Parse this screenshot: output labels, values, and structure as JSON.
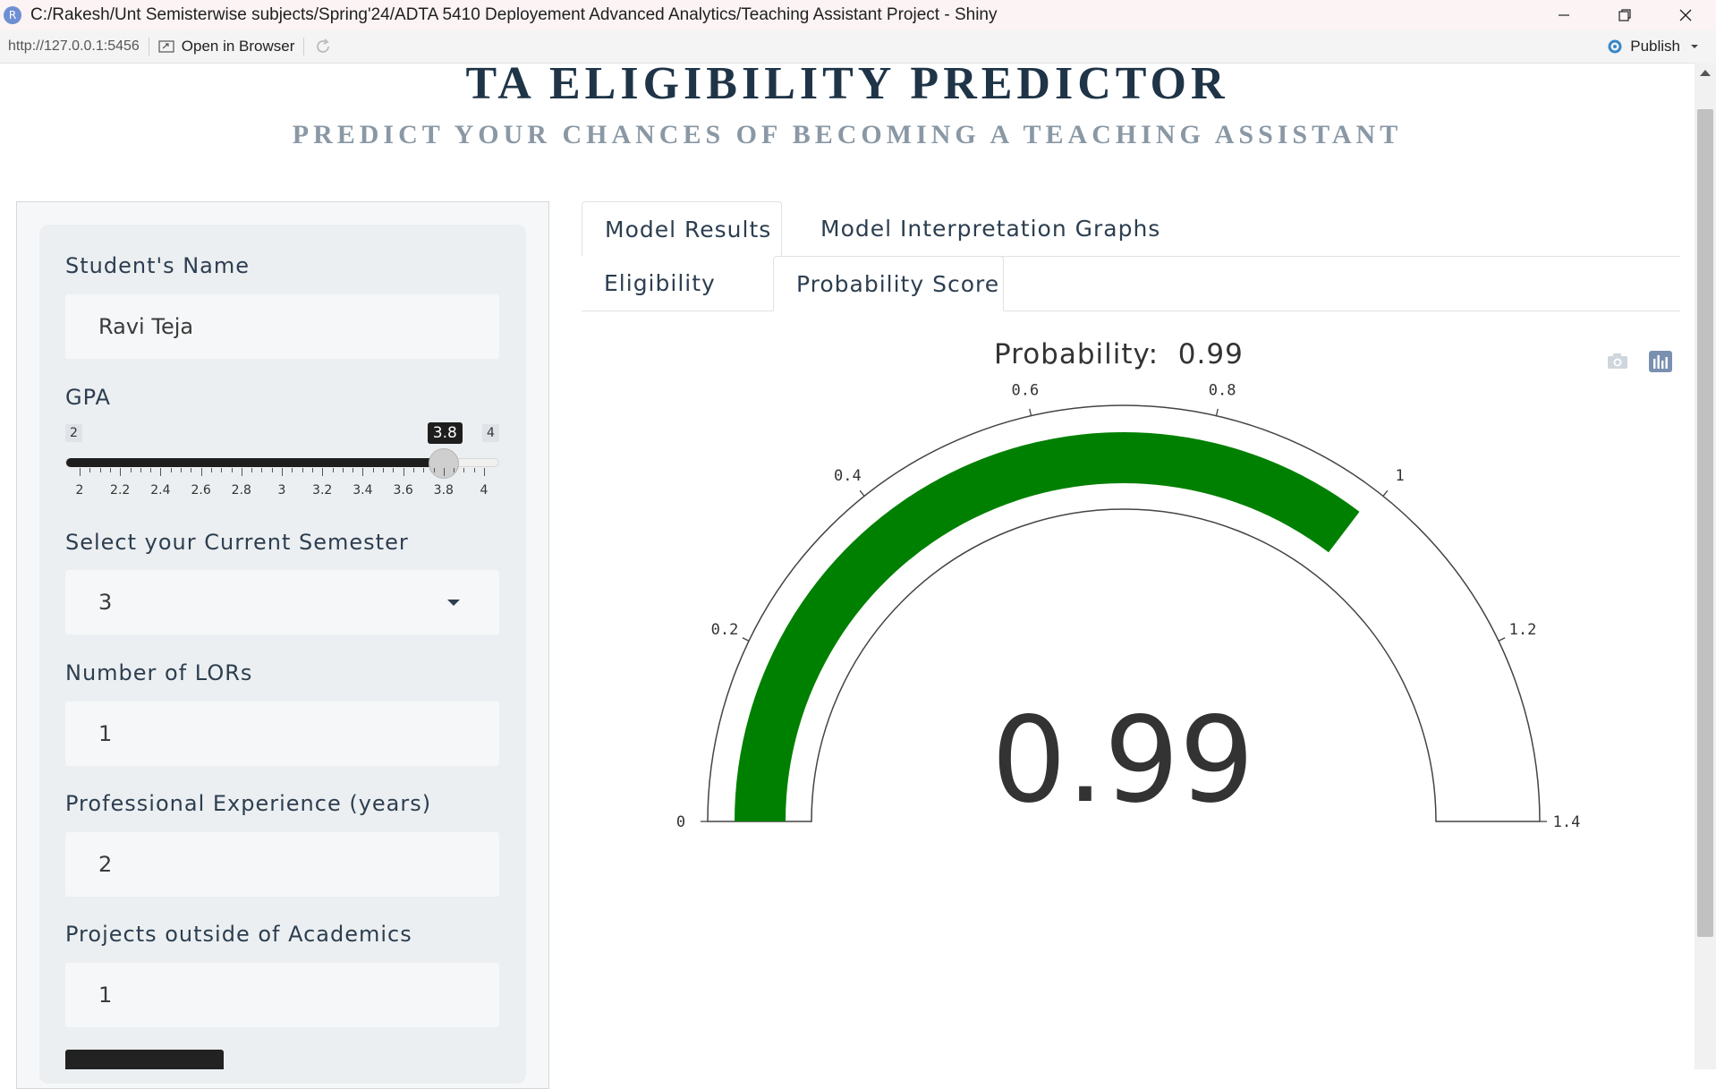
{
  "window": {
    "title": "C:/Rakesh/Unt Semisterwise subjects/Spring'24/ADTA 5410 Deployement Advanced Analytics/Teaching Assistant Project - Shiny",
    "app_icon": "R"
  },
  "toolbar": {
    "url": "http://127.0.0.1:5456",
    "open_browser_label": "Open in Browser",
    "publish_label": "Publish"
  },
  "header": {
    "title": "TA ELIGIBILITY PREDICTOR",
    "subtitle": "PREDICT YOUR CHANCES OF BECOMING A TEACHING ASSISTANT"
  },
  "sidebar": {
    "name_label": "Student's Name",
    "name_value": "Ravi Teja",
    "gpa_label": "GPA",
    "gpa_slider": {
      "min": 2,
      "max": 4,
      "value": 3.8,
      "min_label": "2",
      "max_label": "4",
      "value_label": "3.8",
      "ticks": [
        "2",
        "2.2",
        "2.4",
        "2.6",
        "2.8",
        "3",
        "3.2",
        "3.4",
        "3.6",
        "3.8",
        "4"
      ]
    },
    "semester_label": "Select your Current Semester",
    "semester_value": "3",
    "lors_label": "Number of LORs",
    "lors_value": "1",
    "experience_label": "Professional Experience (years)",
    "experience_value": "2",
    "projects_label": "Projects outside of Academics",
    "projects_value": "1"
  },
  "tabs": {
    "main": [
      "Model Results",
      "Model Interpretation Graphs"
    ],
    "sub": [
      "Eligibility",
      "Probability Score"
    ],
    "active_main": "Model Results",
    "active_sub": "Probability Score"
  },
  "gauge": {
    "title": "Probability:  0.99",
    "value_label": "0.99",
    "value": 0.99,
    "range": [
      0,
      1.4
    ],
    "bar_color": "#008000",
    "tick_labels": [
      "0",
      "0.2",
      "0.4",
      "0.6",
      "0.8",
      "1",
      "1.2",
      "1.4"
    ],
    "ticks": [
      0,
      0.2,
      0.4,
      0.6,
      0.8,
      1,
      1.2,
      1.4
    ]
  },
  "modebar": {
    "icons": [
      "camera-icon",
      "plotly-logo-icon"
    ]
  }
}
